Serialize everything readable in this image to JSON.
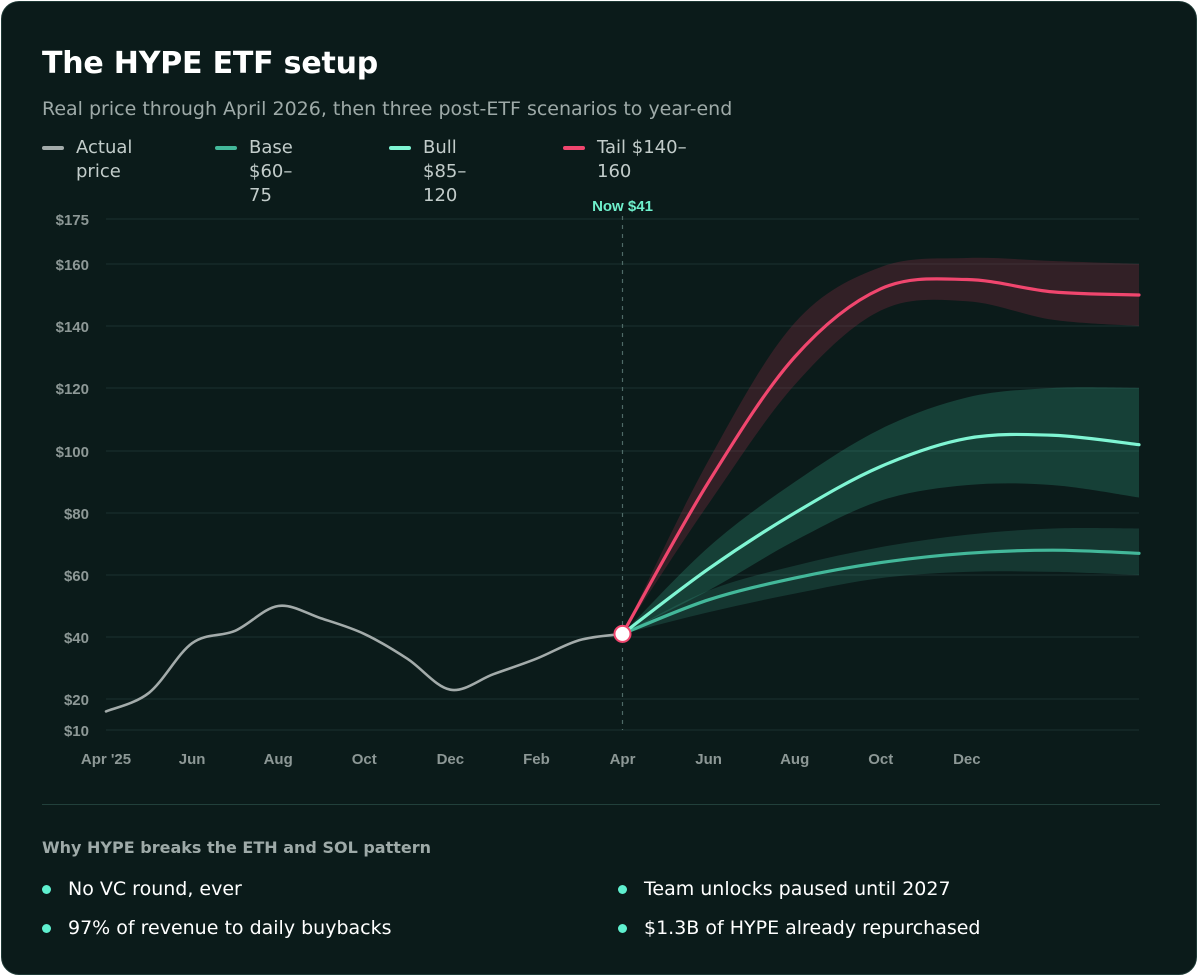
{
  "header": {
    "title": "The HYPE ETF setup",
    "subtitle": "Real price through April 2026, then three post-ETF scenarios to year-end"
  },
  "legend": [
    {
      "label": "Actual price",
      "color": "#a3abaa"
    },
    {
      "label": "Base $60–75",
      "color": "#43b89a"
    },
    {
      "label": "Bull $85–120",
      "color": "#7ff5d3"
    },
    {
      "label": "Tail $140–160",
      "color": "#f0466e"
    }
  ],
  "chart_data": {
    "type": "line",
    "y_ticks": [
      {
        "value": 10,
        "label": "$10"
      },
      {
        "value": 20,
        "label": "$20"
      },
      {
        "value": 40,
        "label": "$40"
      },
      {
        "value": 60,
        "label": "$60"
      },
      {
        "value": 80,
        "label": "$80"
      },
      {
        "value": 100,
        "label": "$100"
      },
      {
        "value": 120,
        "label": "$120"
      },
      {
        "value": 140,
        "label": "$140"
      },
      {
        "value": 160,
        "label": "$160"
      },
      {
        "value": 175,
        "label": "$175"
      }
    ],
    "x_ticks": [
      "Apr '25",
      "Jun",
      "Aug",
      "Oct",
      "Dec",
      "Feb",
      "Apr",
      "Jun",
      "Aug",
      "Oct",
      "Dec"
    ],
    "ylim": [
      10,
      175
    ],
    "grid": true,
    "now_marker": {
      "label": "Now $41",
      "x": 12,
      "value": 41
    },
    "series": [
      {
        "name": "Actual price",
        "color": "#a3abaa",
        "x": [
          0,
          1,
          2,
          3,
          4,
          5,
          6,
          7,
          8,
          9,
          10,
          11,
          12
        ],
        "values": [
          16,
          22,
          38,
          42,
          50,
          46,
          41,
          33,
          23,
          28,
          33,
          39,
          41
        ]
      },
      {
        "name": "Base $60–75",
        "color": "#43b89a",
        "band_color": "#43b89a",
        "x": [
          12,
          14,
          16,
          18,
          20,
          22,
          24
        ],
        "values": [
          41,
          52,
          59,
          64,
          67,
          68,
          67
        ],
        "lower": [
          41,
          48,
          54,
          59,
          61,
          61,
          60
        ],
        "upper": [
          41,
          55,
          63,
          69,
          73,
          75,
          75
        ]
      },
      {
        "name": "Bull $85–120",
        "color": "#7ff5d3",
        "band_color": "#3fc49f",
        "x": [
          12,
          14,
          16,
          18,
          20,
          22,
          24
        ],
        "values": [
          41,
          62,
          80,
          95,
          104,
          105,
          102
        ],
        "lower": [
          41,
          55,
          71,
          84,
          89,
          89,
          85
        ],
        "upper": [
          41,
          69,
          90,
          107,
          117,
          120,
          120
        ]
      },
      {
        "name": "Tail $140–160",
        "color": "#f0466e",
        "band_color": "#a8304c",
        "x": [
          12,
          14,
          16,
          18,
          20,
          22,
          24
        ],
        "values": [
          41,
          90,
          130,
          152,
          155,
          151,
          150
        ],
        "lower": [
          41,
          83,
          121,
          145,
          148,
          142,
          140
        ],
        "upper": [
          41,
          97,
          141,
          159,
          162,
          161,
          160
        ]
      }
    ]
  },
  "why": {
    "title": "Why HYPE breaks the ETH and SOL pattern",
    "points": [
      "No VC round, ever",
      "Team unlocks paused until 2027",
      "97% of revenue to daily buybacks",
      "$1.3B of HYPE already repurchased"
    ]
  }
}
